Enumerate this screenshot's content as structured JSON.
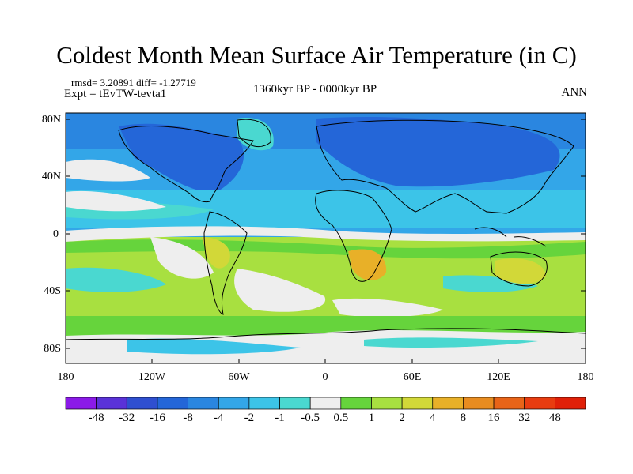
{
  "title": "Coldest Month Mean Surface Air Temperature (in C)",
  "stats": "rmsd= 3.20891  diff= -1.27719",
  "experiment": "Expt = tEvTW-tevta1",
  "period": "1360kyr BP - 0000kyr BP",
  "season": "ANN",
  "lat_ticks": [
    "80N",
    "40N",
    "0",
    "40S",
    "80S"
  ],
  "lon_ticks": [
    "180",
    "120W",
    "60W",
    "0",
    "60E",
    "120E",
    "180"
  ],
  "colorbar": {
    "colors": [
      "#8b1ae8",
      "#5a32d8",
      "#2f4fd0",
      "#2466d8",
      "#2a86e0",
      "#33a6e8",
      "#3cc4e8",
      "#4ad8d0",
      "#eeeeee",
      "#66d43c",
      "#a8e040",
      "#d2d838",
      "#e8b028",
      "#e88c20",
      "#e86418",
      "#e83c10",
      "#e02008"
    ],
    "labels": [
      "-48",
      "-32",
      "-16",
      "-8",
      "-4",
      "-2",
      "-1",
      "-0.5",
      "0.5",
      "1",
      "2",
      "4",
      "8",
      "16",
      "32",
      "48"
    ]
  },
  "map_colors": {
    "deep_cold": "#2466d8",
    "cold": "#2a86e0",
    "cool": "#33a6e8",
    "cyan": "#3cc4e8",
    "teal": "#4ad8d0",
    "neutral": "#eeeeee",
    "green": "#66d43c",
    "yellowgreen": "#a8e040",
    "yellow": "#d2d838",
    "orange": "#e8b028"
  }
}
